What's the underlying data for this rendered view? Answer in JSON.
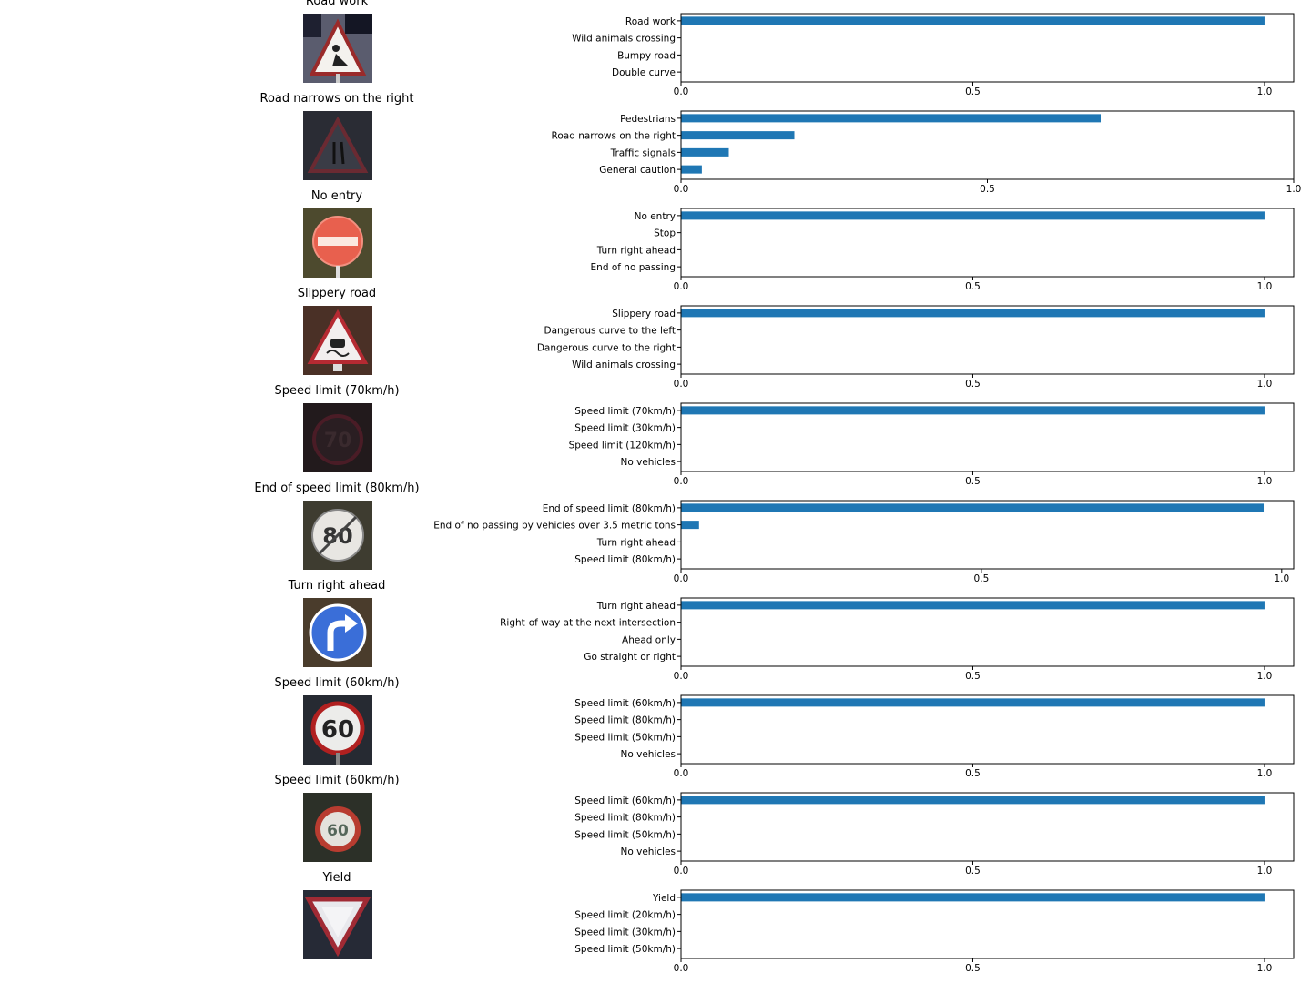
{
  "colors": {
    "bar": "#1f77b4",
    "axis": "#000000"
  },
  "chart_data": [
    {
      "type": "bar",
      "orientation": "horizontal",
      "title": "Road work",
      "image": "road-work-sign",
      "categories": [
        "Road work",
        "Wild animals crossing",
        "Bumpy road",
        "Double curve"
      ],
      "values": [
        1.0,
        0.0,
        0.0,
        0.0
      ],
      "xlim": [
        0,
        1.05
      ],
      "xticks": [
        "0.0",
        "0.5",
        "1.0"
      ],
      "xtick_values": [
        0,
        0.5,
        1.0
      ]
    },
    {
      "type": "bar",
      "orientation": "horizontal",
      "title": "Road narrows on the right",
      "image": "road-narrows-sign",
      "categories": [
        "Pedestrians",
        "Road narrows on the right",
        "Traffic signals",
        "General caution"
      ],
      "values": [
        0.685,
        0.185,
        0.078,
        0.034
      ],
      "xlim": [
        0,
        1.0
      ],
      "xticks": [
        "0.0",
        "0.5",
        "1.0"
      ],
      "xtick_values": [
        0,
        0.5,
        1.0
      ]
    },
    {
      "type": "bar",
      "orientation": "horizontal",
      "title": "No entry",
      "image": "no-entry-sign",
      "categories": [
        "No entry",
        "Stop",
        "Turn right ahead",
        "End of no passing"
      ],
      "values": [
        1.0,
        0.0,
        0.0,
        0.0
      ],
      "xlim": [
        0,
        1.05
      ],
      "xticks": [
        "0.0",
        "0.5",
        "1.0"
      ],
      "xtick_values": [
        0,
        0.5,
        1.0
      ]
    },
    {
      "type": "bar",
      "orientation": "horizontal",
      "title": "Slippery road",
      "image": "slippery-road-sign",
      "categories": [
        "Slippery road",
        "Dangerous curve to the left",
        "Dangerous curve to the right",
        "Wild animals crossing"
      ],
      "values": [
        1.0,
        0.0,
        0.0,
        0.0
      ],
      "xlim": [
        0,
        1.05
      ],
      "xticks": [
        "0.0",
        "0.5",
        "1.0"
      ],
      "xtick_values": [
        0,
        0.5,
        1.0
      ]
    },
    {
      "type": "bar",
      "orientation": "horizontal",
      "title": "Speed limit (70km/h)",
      "image": "speed-limit-70-sign",
      "categories": [
        "Speed limit (70km/h)",
        "Speed limit (30km/h)",
        "Speed limit (120km/h)",
        "No vehicles"
      ],
      "values": [
        1.0,
        0.0,
        0.0,
        0.0
      ],
      "xlim": [
        0,
        1.05
      ],
      "xticks": [
        "0.0",
        "0.5",
        "1.0"
      ],
      "xtick_values": [
        0,
        0.5,
        1.0
      ]
    },
    {
      "type": "bar",
      "orientation": "horizontal",
      "title": "End of speed limit (80km/h)",
      "image": "end-speed-limit-80-sign",
      "categories": [
        "End of speed limit (80km/h)",
        "End of no passing by vehicles over 3.5 metric tons",
        "Turn right ahead",
        "Speed limit (80km/h)"
      ],
      "values": [
        0.97,
        0.03,
        0.0,
        0.0
      ],
      "xlim": [
        0,
        1.02
      ],
      "xticks": [
        "0.0",
        "0.5",
        "1.0"
      ],
      "xtick_values": [
        0,
        0.5,
        1.0
      ]
    },
    {
      "type": "bar",
      "orientation": "horizontal",
      "title": "Turn right ahead",
      "image": "turn-right-ahead-sign",
      "categories": [
        "Turn right ahead",
        "Right-of-way at the next intersection",
        "Ahead only",
        "Go straight or right"
      ],
      "values": [
        1.0,
        0.0,
        0.0,
        0.0
      ],
      "xlim": [
        0,
        1.05
      ],
      "xticks": [
        "0.0",
        "0.5",
        "1.0"
      ],
      "xtick_values": [
        0,
        0.5,
        1.0
      ]
    },
    {
      "type": "bar",
      "orientation": "horizontal",
      "title": "Speed limit (60km/h)",
      "image": "speed-limit-60-sign",
      "categories": [
        "Speed limit (60km/h)",
        "Speed limit (80km/h)",
        "Speed limit (50km/h)",
        "No vehicles"
      ],
      "values": [
        1.0,
        0.0,
        0.0,
        0.0
      ],
      "xlim": [
        0,
        1.05
      ],
      "xticks": [
        "0.0",
        "0.5",
        "1.0"
      ],
      "xtick_values": [
        0,
        0.5,
        1.0
      ]
    },
    {
      "type": "bar",
      "orientation": "horizontal",
      "title": "Speed limit (60km/h)",
      "image": "speed-limit-60-sign-blurry",
      "categories": [
        "Speed limit (60km/h)",
        "Speed limit (80km/h)",
        "Speed limit (50km/h)",
        "No vehicles"
      ],
      "values": [
        1.0,
        0.0,
        0.0,
        0.0
      ],
      "xlim": [
        0,
        1.05
      ],
      "xticks": [
        "0.0",
        "0.5",
        "1.0"
      ],
      "xtick_values": [
        0,
        0.5,
        1.0
      ]
    },
    {
      "type": "bar",
      "orientation": "horizontal",
      "title": "Yield",
      "image": "yield-sign",
      "categories": [
        "Yield",
        "Speed limit (20km/h)",
        "Speed limit (30km/h)",
        "Speed limit (50km/h)"
      ],
      "values": [
        1.0,
        0.0,
        0.0,
        0.0
      ],
      "xlim": [
        0,
        1.05
      ],
      "xticks": [
        "0.0",
        "0.5",
        "1.0"
      ],
      "xtick_values": [
        0,
        0.5,
        1.0
      ]
    }
  ]
}
